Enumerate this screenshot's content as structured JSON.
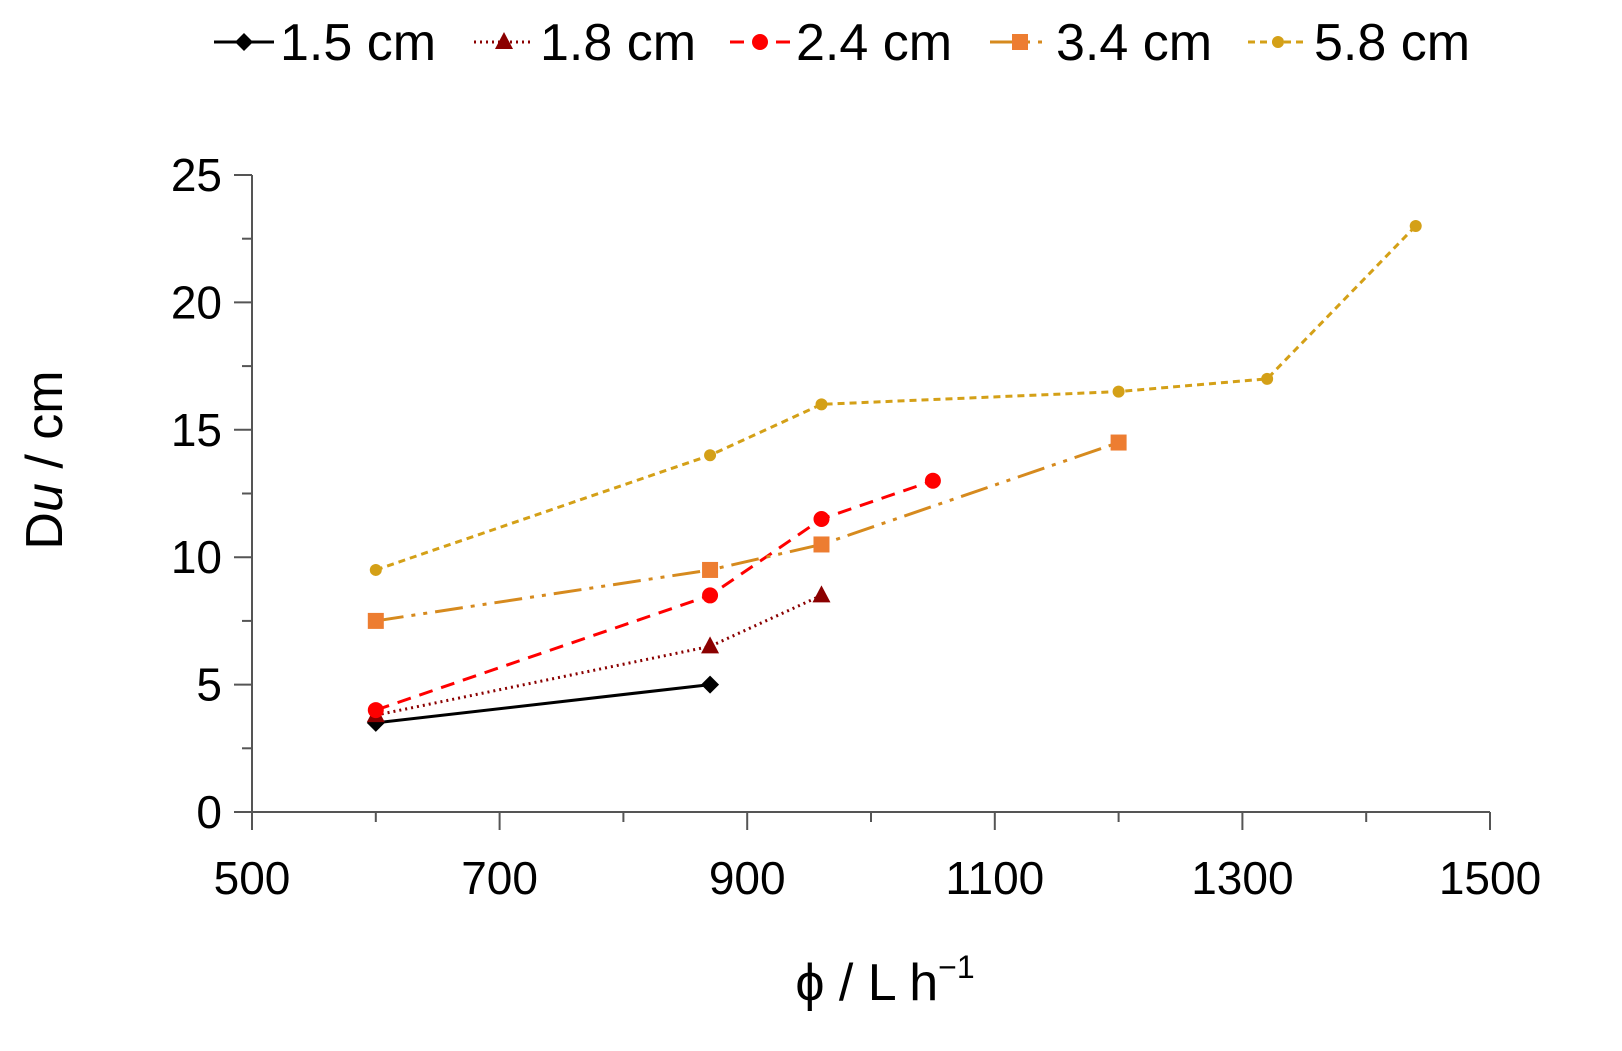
{
  "chart_data": {
    "type": "line",
    "title": "",
    "xlabel": "ϕ / L h",
    "xlabel_sup": "−1",
    "ylabel": "D",
    "ylabel_sub": "u",
    "ylabel_unit": " / cm",
    "xlim": [
      500,
      1500
    ],
    "ylim": [
      0,
      25
    ],
    "x_major_ticks": [
      500,
      700,
      900,
      1100,
      1300,
      1500
    ],
    "x_minor_ticks": [
      600,
      800,
      1000,
      1200,
      1400
    ],
    "y_major_ticks": [
      0,
      5,
      10,
      15,
      20,
      25
    ],
    "y_minor_ticks": [
      2.5,
      7.5,
      12.5,
      17.5,
      22.5
    ],
    "x_tick_labels": [
      "500",
      "700",
      "900",
      "1100",
      "1300",
      "1500"
    ],
    "y_tick_labels": [
      "0",
      "5",
      "10",
      "15",
      "20",
      "25"
    ],
    "grid": false,
    "legend_position": "top",
    "series": [
      {
        "name": "1.5 cm",
        "color": "#000000",
        "marker": "diamond",
        "dash": "solid",
        "x": [
          600,
          870
        ],
        "y": [
          3.5,
          5.0
        ]
      },
      {
        "name": "1.8 cm",
        "color": "#8B0000",
        "marker": "triangle",
        "dash": "dot",
        "x": [
          600,
          870,
          960
        ],
        "y": [
          3.8,
          6.5,
          8.5
        ]
      },
      {
        "name": "2.4 cm",
        "color": "#FF0000",
        "marker": "circle",
        "dash": "dash",
        "x": [
          600,
          870,
          960,
          1050
        ],
        "y": [
          4.0,
          8.5,
          11.5,
          13.0
        ]
      },
      {
        "name": "3.4 cm",
        "color": "#ED7D31",
        "line_color": "#D68A1E",
        "marker": "square",
        "dash": "dashdotdot",
        "x": [
          600,
          870,
          960,
          1200
        ],
        "y": [
          7.5,
          9.5,
          10.5,
          14.5
        ]
      },
      {
        "name": "5.8 cm",
        "color": "#D4A017",
        "marker": "smallcircle",
        "dash": "shortdash",
        "x": [
          600,
          870,
          960,
          1200,
          1320,
          1440
        ],
        "y": [
          9.5,
          14.0,
          16.0,
          16.5,
          17.0,
          23.0
        ]
      }
    ]
  }
}
